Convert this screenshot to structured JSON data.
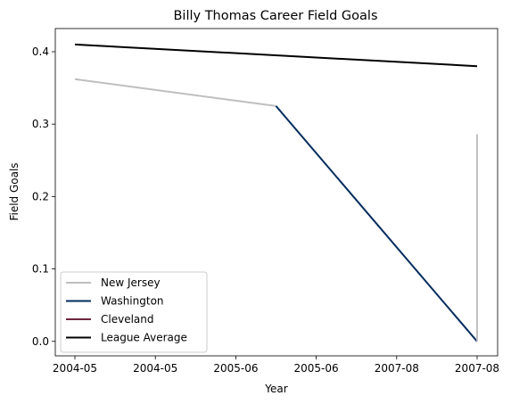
{
  "chart_data": {
    "type": "line",
    "title": "Billy Thomas  Career Field Goals",
    "xlabel": "Year",
    "ylabel": "Field Goals",
    "x_ticks": [
      "2004-05",
      "2004-05",
      "2005-06",
      "2005-06",
      "2007-08",
      "2007-08"
    ],
    "ylim": [
      -0.02,
      0.432
    ],
    "y_ticks": [
      0.0,
      0.1,
      0.2,
      0.3,
      0.4
    ],
    "y_tick_labels": [
      "0.0",
      "0.1",
      "0.2",
      "0.3",
      "0.4"
    ],
    "grid": false,
    "legend_position": "lower-left",
    "series": [
      {
        "name": "New Jersey",
        "color": "#bfbfbf",
        "points": [
          {
            "x": 0,
            "y": 0.362
          },
          {
            "x": 2.5,
            "y": 0.325
          }
        ]
      },
      {
        "name": "Washington",
        "color": "#002b5c",
        "points": [
          {
            "x": 2.5,
            "y": 0.325
          },
          {
            "x": 5,
            "y": 0.0
          }
        ]
      },
      {
        "name": "Cleveland",
        "color": "#6f263d",
        "points": [
          {
            "x": 5,
            "y": 0.0
          }
        ]
      },
      {
        "name": "New Jersey",
        "color": "#bfbfbf",
        "legend": false,
        "points": [
          {
            "x": 5,
            "y": 0.0
          },
          {
            "x": 5,
            "y": 0.286
          }
        ]
      },
      {
        "name": "League Average",
        "color": "#000000",
        "points": [
          {
            "x": 0,
            "y": 0.41
          },
          {
            "x": 5,
            "y": 0.38
          }
        ]
      }
    ]
  }
}
